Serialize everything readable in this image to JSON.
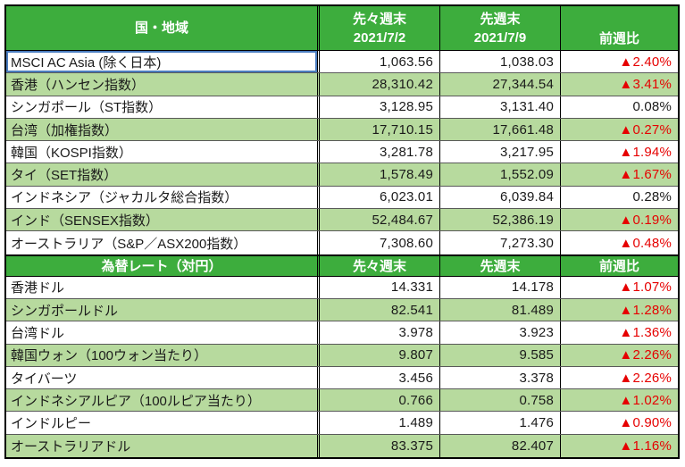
{
  "table": {
    "colors": {
      "header_green": "#3DAD3D",
      "row_green": "#B7DA9E",
      "negative_red": "#E60000",
      "selection_blue": "#4b7dc0"
    },
    "indices": {
      "header": {
        "region_label": "国・地域",
        "col_prev2_label": "先々週末",
        "col_prev2_date": "2021/7/2",
        "col_prev_label": "先週末",
        "col_prev_date": "2021/7/9",
        "col_change_label": "前週比"
      },
      "rows": [
        {
          "label": "MSCI AC Asia (除く日本)",
          "prev2": "1,063.56",
          "prev": "1,038.03",
          "change": "▲2.40%",
          "selected": true
        },
        {
          "label": "香港（ハンセン指数）",
          "prev2": "28,310.42",
          "prev": "27,344.54",
          "change": "▲3.41%"
        },
        {
          "label": "シンガポール（ST指数）",
          "prev2": "3,128.95",
          "prev": "3,131.40",
          "change": "0.08%"
        },
        {
          "label": "台湾（加権指数）",
          "prev2": "17,710.15",
          "prev": "17,661.48",
          "change": "▲0.27%"
        },
        {
          "label": "韓国（KOSPI指数）",
          "prev2": "3,281.78",
          "prev": "3,217.95",
          "change": "▲1.94%"
        },
        {
          "label": "タイ（SET指数）",
          "prev2": "1,578.49",
          "prev": "1,552.09",
          "change": "▲1.67%"
        },
        {
          "label": "インドネシア（ジャカルタ総合指数）",
          "prev2": "6,023.01",
          "prev": "6,039.84",
          "change": "0.28%"
        },
        {
          "label": "インド（SENSEX指数）",
          "prev2": "52,484.67",
          "prev": "52,386.19",
          "change": "▲0.19%"
        },
        {
          "label": "オーストラリア（S&P／ASX200指数）",
          "prev2": "7,308.60",
          "prev": "7,273.30",
          "change": "▲0.48%"
        }
      ]
    },
    "fx": {
      "header": {
        "title_label": "為替レート（対円）",
        "col_prev2_label": "先々週末",
        "col_prev_label": "先週末",
        "col_change_label": "前週比"
      },
      "rows": [
        {
          "label": "香港ドル",
          "prev2": "14.331",
          "prev": "14.178",
          "change": "▲1.07%"
        },
        {
          "label": "シンガポールドル",
          "prev2": "82.541",
          "prev": "81.489",
          "change": "▲1.28%"
        },
        {
          "label": "台湾ドル",
          "prev2": "3.978",
          "prev": "3.923",
          "change": "▲1.36%"
        },
        {
          "label": "韓国ウォン（100ウォン当たり）",
          "prev2": "9.807",
          "prev": "9.585",
          "change": "▲2.26%"
        },
        {
          "label": "タイバーツ",
          "prev2": "3.456",
          "prev": "3.378",
          "change": "▲2.26%"
        },
        {
          "label": "インドネシアルピア（100ルピア当たり）",
          "prev2": "0.766",
          "prev": "0.758",
          "change": "▲1.02%"
        },
        {
          "label": "インドルピー",
          "prev2": "1.489",
          "prev": "1.476",
          "change": "▲0.90%"
        },
        {
          "label": "オーストラリアドル",
          "prev2": "83.375",
          "prev": "82.407",
          "change": "▲1.16%"
        }
      ]
    }
  }
}
